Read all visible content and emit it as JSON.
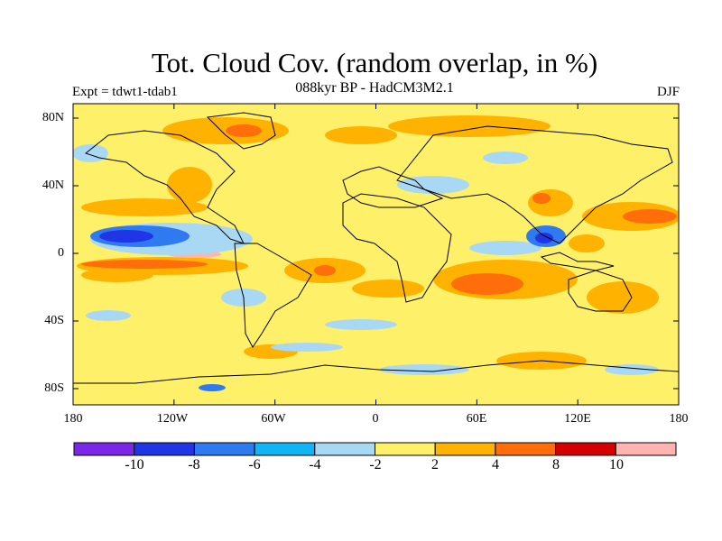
{
  "title": "Tot. Cloud Cov. (random overlap, in %)",
  "subtitle": "088kyr BP - HadCM3M2.1",
  "experiment": "Expt = tdwt1-tdab1",
  "season": "DJF",
  "map": {
    "projection": "cylindrical equidistant",
    "lon_range": [
      -180,
      180
    ],
    "lat_range": [
      -90,
      90
    ],
    "y_ticks": [
      "80N",
      "40N",
      "0",
      "40S",
      "80S"
    ],
    "x_ticks": [
      "180",
      "120W",
      "60W",
      "0",
      "60E",
      "120E",
      "180"
    ],
    "background_color": "#FFF06A"
  },
  "colorbar": {
    "colors": [
      "#7B27E8",
      "#2036E6",
      "#2F7AF0",
      "#11B4F6",
      "#A8D8F4",
      "#FFF06A",
      "#FFB300",
      "#FF6E0A",
      "#D70000",
      "#FFB4B0"
    ],
    "labels": [
      "-10",
      "-8",
      "-6",
      "-4",
      "-2",
      "2",
      "4",
      "8",
      "10"
    ]
  }
}
